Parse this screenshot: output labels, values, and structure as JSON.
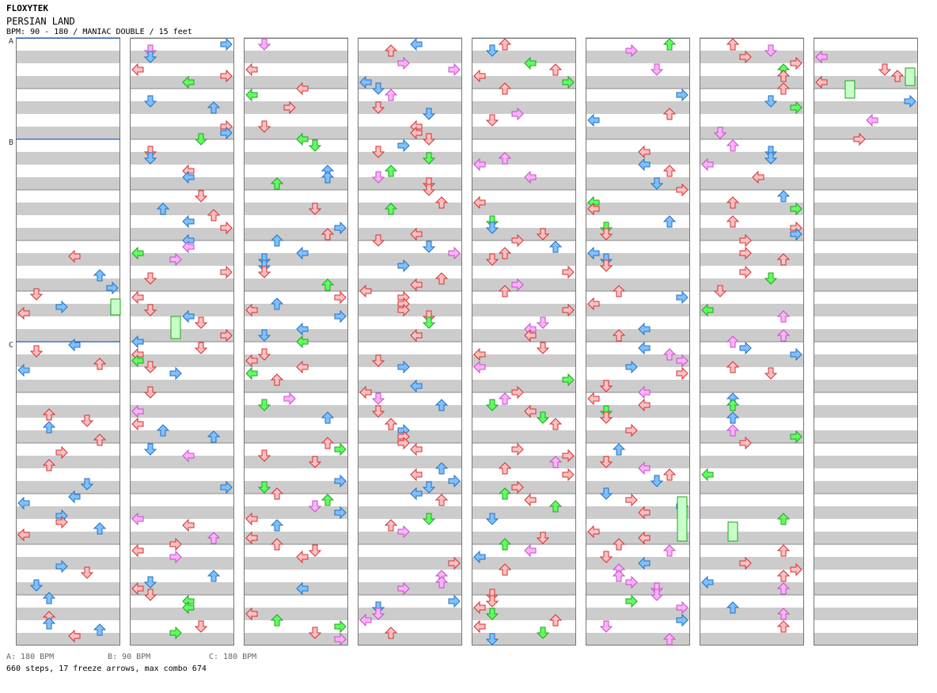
{
  "header": {
    "site": "FLOXYTEK",
    "song_title": "PERSIAN LAND",
    "info": "BPM: 90 - 180 / MANIAC DOUBLE / 15 feet"
  },
  "section_markers": [
    "A",
    "B",
    "C"
  ],
  "bpm_legend": {
    "a": "A: 180 BPM",
    "b": "B: 90 BPM",
    "c": "C: 180 BPM"
  },
  "summary": "660 steps, 17 freeze arrows, max combo 674",
  "colors": {
    "red_arrow": "#ffc0c0",
    "red_border": "#d03030",
    "blue_arrow": "#80c0ff",
    "blue_border": "#2070c0",
    "green_arrow": "#60ff60",
    "green_border": "#20a020",
    "pink_arrow": "#ffb0ff",
    "pink_border": "#c050c0",
    "stripe": "#cccccc",
    "section_line": "#2060c0"
  },
  "icons": [
    "arrow-left-icon",
    "arrow-down-icon",
    "arrow-up-icon",
    "arrow-right-icon",
    "freeze-arrow-icon"
  ]
}
